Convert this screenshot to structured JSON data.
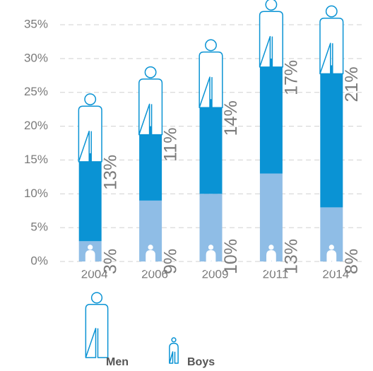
{
  "chart_data": {
    "type": "stacked_bar",
    "categories": [
      "2004",
      "2006",
      "2009",
      "2011",
      "2014"
    ],
    "series": [
      {
        "name": "Boys",
        "color": "#8fbde6",
        "values": [
          3,
          9,
          10,
          13,
          8
        ],
        "value_labels": [
          "3%",
          "9%",
          "10%",
          "13%",
          "8%"
        ]
      },
      {
        "name": "Men",
        "color": "#0a93d4",
        "values": [
          13,
          11,
          14,
          17,
          21
        ],
        "value_labels": [
          "13%",
          "11%",
          "14%",
          "17%",
          "21%"
        ]
      }
    ],
    "ylim": [
      0,
      35
    ],
    "yticks": [
      {
        "value": 0,
        "label": "0%"
      },
      {
        "value": 5,
        "label": "5%"
      },
      {
        "value": 10,
        "label": "10%"
      },
      {
        "value": 15,
        "label": "15%"
      },
      {
        "value": 20,
        "label": "20%"
      },
      {
        "value": 25,
        "label": "25%"
      },
      {
        "value": 30,
        "label": "30%"
      },
      {
        "value": 35,
        "label": "35%"
      }
    ],
    "grid": true
  }
}
